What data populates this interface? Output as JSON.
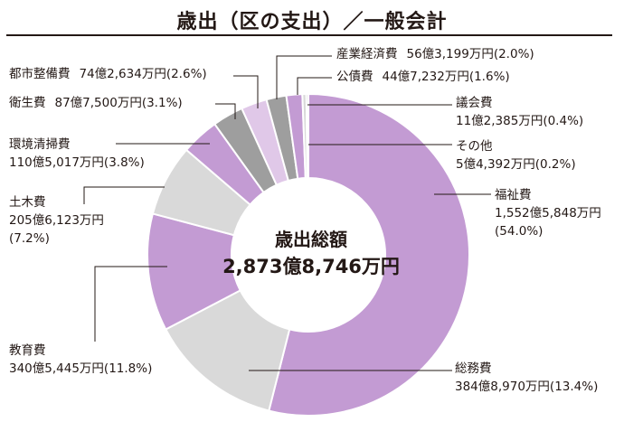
{
  "title": "歳出（区の支出）／一般会計",
  "center": {
    "label": "歳出総額",
    "total": "2,873億8,746万円"
  },
  "colors": {
    "purple": "#c39bd3",
    "light_gray": "#d9d9d9",
    "dark_gray": "#9e9e9e",
    "light_purple": "#e0c8e8",
    "line": "#231815"
  },
  "chart_data": {
    "type": "pie",
    "variant": "donut",
    "title": "歳出（区の支出）／一般会計",
    "unit": "万円",
    "slices": [
      {
        "name": "福祉費",
        "amount": "1,552億5,848万円",
        "share": "(54.0%)",
        "value": 54.0,
        "color": "#c39bd3"
      },
      {
        "name": "総務費",
        "amount": "384億8,970万円",
        "share": "(13.4%)",
        "value": 13.4,
        "color": "#d9d9d9"
      },
      {
        "name": "教育費",
        "amount": "340億5,445万円",
        "share": "(11.8%)",
        "value": 11.8,
        "color": "#c39bd3"
      },
      {
        "name": "土木費",
        "amount": "205億6,123万円",
        "share": "(7.2%)",
        "value": 7.2,
        "color": "#d9d9d9"
      },
      {
        "name": "環境清掃費",
        "amount": "110億5,017万円",
        "share": "(3.8%)",
        "value": 3.8,
        "color": "#c39bd3"
      },
      {
        "name": "衛生費",
        "amount": "87億7,500万円",
        "share": "(3.1%)",
        "value": 3.1,
        "color": "#9e9e9e"
      },
      {
        "name": "都市整備費",
        "amount": "74億2,634万円",
        "share": "(2.6%)",
        "value": 2.6,
        "color": "#e0c8e8"
      },
      {
        "name": "産業経済費",
        "amount": "56億3,199万円",
        "share": "(2.0%)",
        "value": 2.0,
        "color": "#9e9e9e"
      },
      {
        "name": "公債費",
        "amount": "44億7,232万円",
        "share": "(1.6%)",
        "value": 1.6,
        "color": "#c39bd3"
      },
      {
        "name": "議会費",
        "amount": "11億2,385万円",
        "share": "(0.4%)",
        "value": 0.4,
        "color": "#d9d9d9"
      },
      {
        "name": "その他",
        "amount": "5億4,392万円",
        "share": "(0.2%)",
        "value": 0.2,
        "color": "#9e9e9e"
      }
    ]
  }
}
